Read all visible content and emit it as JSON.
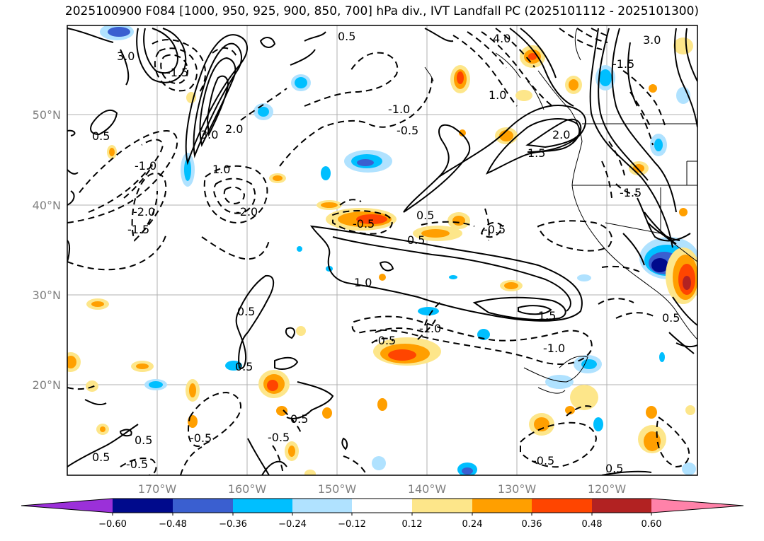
{
  "title": "2025100900 F084 [1000, 950, 925, 900, 850, 700] hPa div., IVT Landfall PC (2025101112 - 2025101300)",
  "lat_ticks": [
    "50°N",
    "40°N",
    "30°N",
    "20°N"
  ],
  "lon_ticks": [
    "170°W",
    "160°W",
    "150°W",
    "140°W",
    "130°W",
    "120°W"
  ],
  "colorbar": {
    "colors": [
      "#9b30d9",
      "#000a8c",
      "#3a5fd0",
      "#00bfff",
      "#b0e2ff",
      "#ffffff",
      "#fde68a",
      "#ff9f00",
      "#ff4500",
      "#b22222",
      "#ff82a9"
    ],
    "tick_labels": [
      "−0.60",
      "−0.48",
      "−0.36",
      "−0.24",
      "−0.12",
      "0.12",
      "0.24",
      "0.36",
      "0.48",
      "0.60"
    ]
  },
  "contour_labels": {
    "c1": "3.0",
    "c2": "3.0",
    "c3": "2.0",
    "c4": "2.0",
    "c5": "1.5",
    "c6": "-1.0",
    "c7": "-1.5",
    "c8": "-2.0",
    "c9": "0.5",
    "c10": "-0.5",
    "c11": "-1.0",
    "c12": "-1.5",
    "c13": "1.0",
    "c14": "0.5",
    "c15": "-0.5",
    "c16": "0.5",
    "c17": "1.5",
    "c18": "0.5",
    "c19": "-0.5",
    "c20": "-1.0",
    "c21": "0.5",
    "c22": "0.5",
    "c23": "0.5",
    "c24": "-0.5",
    "c25": "0.5",
    "c26": "-0.5",
    "c27": "-0.5",
    "c28": "0.5",
    "c29": "1.0",
    "c30": "-2.0",
    "c31": "4.0",
    "c32": "3.0",
    "c33": "-1.5",
    "c34": "-0.5",
    "c35": "0.5",
    "c36": "-0.5",
    "c37": "0.5",
    "c38": "1.0",
    "c39": "-1.0",
    "c40": "-1.5"
  }
}
